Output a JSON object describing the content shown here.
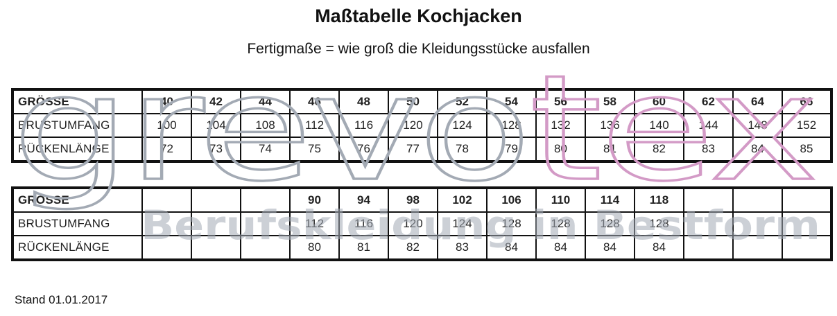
{
  "title": "Maßtabelle Kochjacken",
  "subtitle": "Fertigmaße = wie groß die Kleidungsstücke ausfallen",
  "watermark": {
    "brand": "grevotex",
    "brand_parts": [
      "grevo",
      "tex"
    ],
    "tagline": "Berufskleidung in Bestform",
    "colors": {
      "grey": "#a3aab4",
      "pink": "#d39ac6"
    }
  },
  "tables": [
    {
      "rows": [
        {
          "label": "GRÖSSE",
          "cells": [
            "40",
            "42",
            "44",
            "46",
            "48",
            "50",
            "52",
            "54",
            "56",
            "58",
            "60",
            "62",
            "64",
            "66"
          ]
        },
        {
          "label": "BRUSTUMFANG",
          "cells": [
            "100",
            "104",
            "108",
            "112",
            "116",
            "120",
            "124",
            "128",
            "132",
            "136",
            "140",
            "144",
            "148",
            "152"
          ]
        },
        {
          "label": "RÜCKENLÄNGE",
          "cells": [
            "72",
            "73",
            "74",
            "75",
            "76",
            "77",
            "78",
            "79",
            "80",
            "81",
            "82",
            "83",
            "84",
            "85"
          ]
        }
      ]
    },
    {
      "rows": [
        {
          "label": "GRÖSSE",
          "cells": [
            "",
            "",
            "",
            "90",
            "94",
            "98",
            "102",
            "106",
            "110",
            "114",
            "118",
            "",
            "",
            ""
          ]
        },
        {
          "label": "BRUSTUMFANG",
          "cells": [
            "",
            "",
            "",
            "112",
            "116",
            "120",
            "124",
            "128",
            "128",
            "128",
            "128",
            "",
            "",
            ""
          ]
        },
        {
          "label": "RÜCKENLÄNGE",
          "cells": [
            "",
            "",
            "",
            "80",
            "81",
            "82",
            "83",
            "84",
            "84",
            "84",
            "84",
            "",
            "",
            ""
          ]
        }
      ]
    }
  ],
  "footer": "Stand 01.01.2017"
}
